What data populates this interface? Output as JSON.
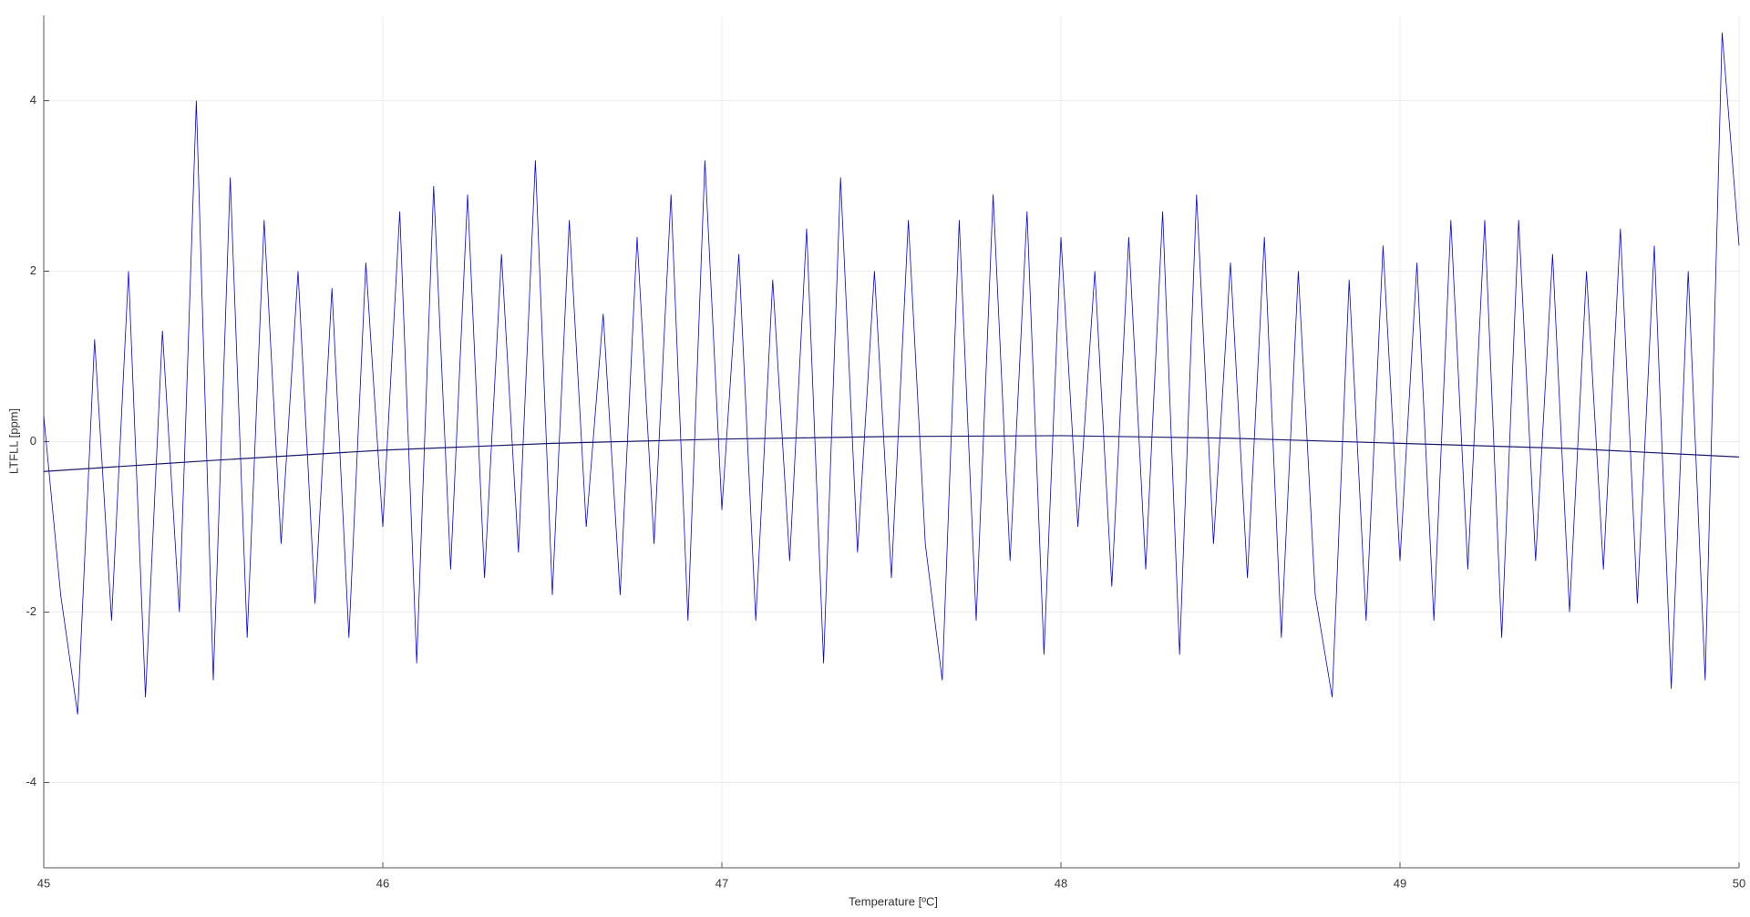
{
  "chart_data": {
    "type": "line",
    "xlabel": "Temperature [ºC]",
    "ylabel": "LTFLL [ppm]",
    "x": [
      45,
      45.05,
      45.1,
      45.15,
      45.2,
      45.25,
      45.3,
      45.35,
      45.4,
      45.45,
      45.5,
      45.55,
      45.6,
      45.65,
      45.7,
      45.75,
      45.8,
      45.85,
      45.9,
      45.95,
      46,
      46.05,
      46.1,
      46.15,
      46.2,
      46.25,
      46.3,
      46.35,
      46.4,
      46.45,
      46.5,
      46.55,
      46.6,
      46.65,
      46.7,
      46.75,
      46.8,
      46.85,
      46.9,
      46.95,
      47,
      47.05,
      47.1,
      47.15,
      47.2,
      47.25,
      47.3,
      47.35,
      47.4,
      47.45,
      47.5,
      47.55,
      47.6,
      47.65,
      47.7,
      47.75,
      47.8,
      47.85,
      47.9,
      47.95,
      48,
      48.05,
      48.1,
      48.15,
      48.2,
      48.25,
      48.3,
      48.35,
      48.4,
      48.45,
      48.5,
      48.55,
      48.6,
      48.65,
      48.7,
      48.75,
      48.8,
      48.85,
      48.9,
      48.95,
      49,
      49.05,
      49.1,
      49.15,
      49.2,
      49.25,
      49.3,
      49.35,
      49.4,
      49.45,
      49.5,
      49.55,
      49.6,
      49.65,
      49.7,
      49.75,
      49.8,
      49.85,
      49.9,
      49.95,
      50
    ],
    "series": [
      {
        "color": "#0000ff",
        "values": [
          0.3,
          -1.8,
          -3.2,
          1.2,
          -2.1,
          2.0,
          -3.0,
          1.3,
          -2.0,
          4.0,
          -2.8,
          3.1,
          -2.3,
          2.6,
          -1.2,
          2.0,
          -1.9,
          1.8,
          -2.3,
          2.1,
          -1.0,
          2.7,
          -2.6,
          3.0,
          -1.5,
          2.9,
          -1.6,
          2.2,
          -1.3,
          3.3,
          -1.8,
          2.6,
          -1.0,
          1.5,
          -1.8,
          2.4,
          -1.2,
          2.9,
          -2.1,
          3.3,
          -0.8,
          2.2,
          -2.1,
          1.9,
          -1.4,
          2.5,
          -2.6,
          3.1,
          -1.3,
          2.0,
          -1.6,
          2.6,
          -1.2,
          -2.8,
          2.6,
          -2.1,
          2.9,
          -1.4,
          2.7,
          -2.5,
          2.4,
          -1.0,
          2.0,
          -1.7,
          2.4,
          -1.5,
          2.7,
          -2.5,
          2.9,
          -1.2,
          2.1,
          -1.6,
          2.4,
          -2.3,
          2.0,
          -1.8,
          -3.0,
          1.9,
          -2.1,
          2.3,
          -1.4,
          2.1,
          -2.1,
          2.6,
          -1.5,
          2.6,
          -2.3,
          2.6,
          -1.4,
          2.2,
          -2.0,
          2.0,
          -1.5,
          2.5,
          -1.9,
          2.3,
          -2.9,
          2.0,
          -2.8,
          4.8,
          2.3
        ]
      },
      {
        "color": "#1a1a6e",
        "x": [
          45,
          45.5,
          46,
          46.5,
          47,
          47.5,
          48,
          48.5,
          49,
          49.5,
          50
        ],
        "values": [
          -0.35,
          -0.22,
          -0.1,
          -0.02,
          0.03,
          0.06,
          0.07,
          0.04,
          -0.02,
          -0.08,
          -0.18
        ]
      }
    ],
    "xlim": [
      45,
      50
    ],
    "xticks": [
      45,
      46,
      47,
      48,
      49,
      50
    ],
    "ylim": [
      -5,
      5
    ],
    "yticks": [
      -4,
      -2,
      0,
      2,
      4
    ],
    "grid": true
  }
}
